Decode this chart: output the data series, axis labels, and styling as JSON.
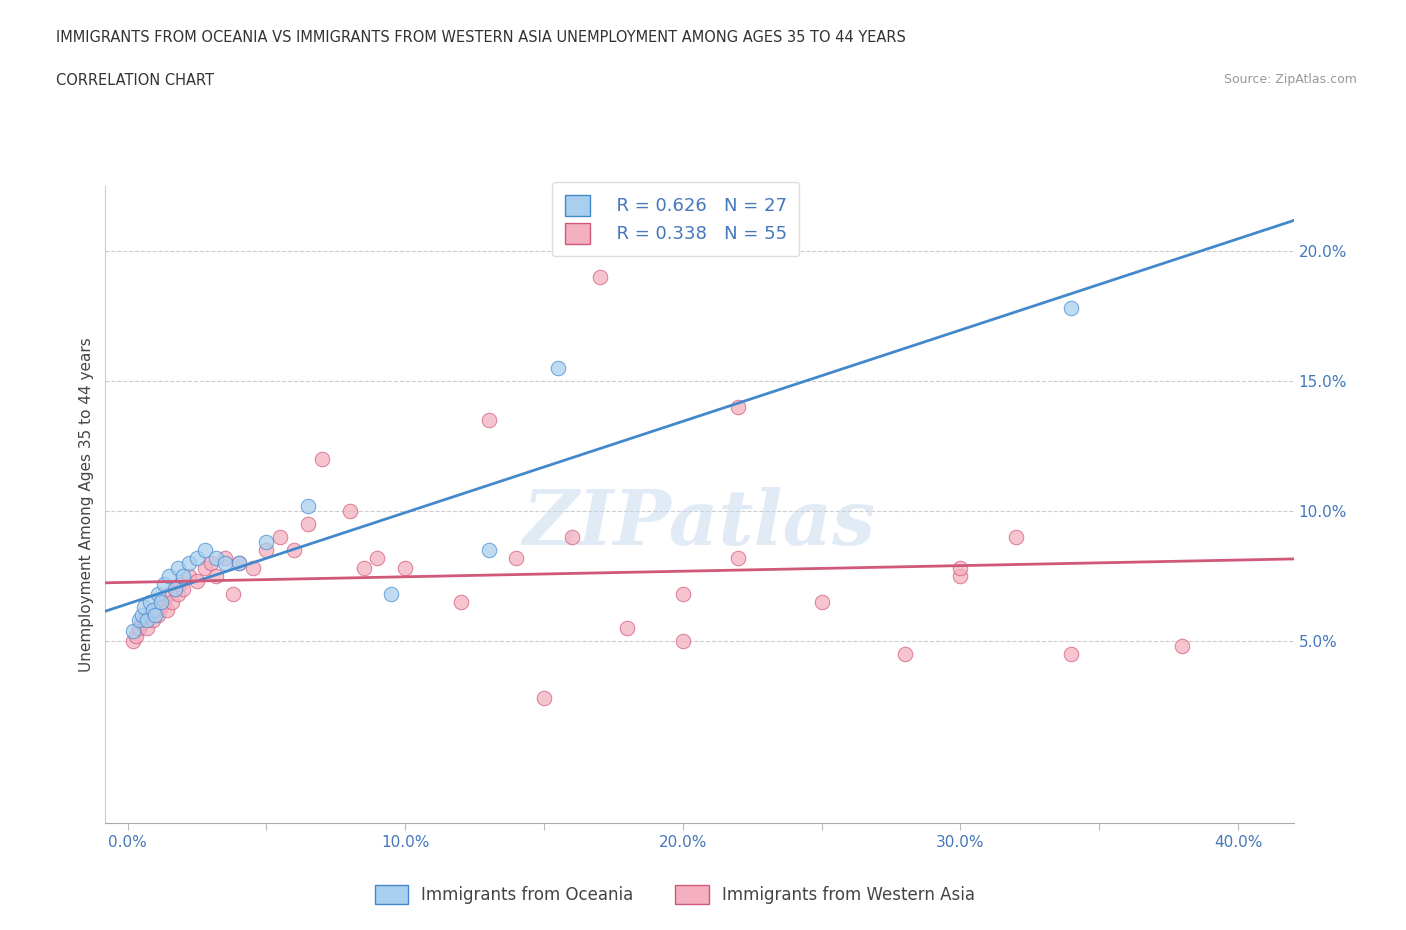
{
  "title_line1": "IMMIGRANTS FROM OCEANIA VS IMMIGRANTS FROM WESTERN ASIA UNEMPLOYMENT AMONG AGES 35 TO 44 YEARS",
  "title_line2": "CORRELATION CHART",
  "source_text": "Source: ZipAtlas.com",
  "ylabel": "Unemployment Among Ages 35 to 44 years",
  "color_oceania": "#A8CFEE",
  "color_western": "#F4B0C0",
  "line_color_oceania": "#4488CC",
  "line_color_western": "#D05878",
  "legend_r_oceania": "R = 0.626",
  "legend_n_oceania": "N = 27",
  "legend_r_western": "R = 0.338",
  "legend_n_western": "N = 55",
  "legend_label_oceania": "Immigrants from Oceania",
  "legend_label_western": "Immigrants from Western Asia",
  "watermark": "ZIPatlas",
  "tick_label_color": "#4477BB",
  "xlabel_ticks": [
    "0.0%",
    "",
    "10.0%",
    "",
    "20.0%",
    "",
    "30.0%",
    "",
    "40.0%"
  ],
  "ylabel_ticks": [
    "5.0%",
    "10.0%",
    "15.0%",
    "20.0%"
  ],
  "x_tick_vals": [
    0.0,
    0.05,
    0.1,
    0.15,
    0.2,
    0.25,
    0.3,
    0.35,
    0.4
  ],
  "y_tick_vals": [
    0.05,
    0.1,
    0.15,
    0.2
  ],
  "xlim": [
    -0.008,
    0.42
  ],
  "ylim": [
    -0.02,
    0.225
  ],
  "oceania_x": [
    0.002,
    0.004,
    0.005,
    0.006,
    0.007,
    0.008,
    0.009,
    0.01,
    0.011,
    0.012,
    0.013,
    0.015,
    0.017,
    0.018,
    0.02,
    0.022,
    0.025,
    0.028,
    0.032,
    0.035,
    0.04,
    0.05,
    0.065,
    0.155,
    0.095,
    0.13,
    0.34
  ],
  "oceania_y": [
    0.054,
    0.058,
    0.06,
    0.063,
    0.058,
    0.065,
    0.062,
    0.06,
    0.068,
    0.065,
    0.072,
    0.075,
    0.07,
    0.078,
    0.075,
    0.08,
    0.082,
    0.085,
    0.082,
    0.08,
    0.08,
    0.088,
    0.102,
    0.155,
    0.068,
    0.085,
    0.178
  ],
  "western_x": [
    0.002,
    0.003,
    0.004,
    0.005,
    0.006,
    0.007,
    0.008,
    0.009,
    0.01,
    0.011,
    0.012,
    0.013,
    0.014,
    0.015,
    0.016,
    0.017,
    0.018,
    0.019,
    0.02,
    0.022,
    0.025,
    0.028,
    0.03,
    0.032,
    0.035,
    0.038,
    0.04,
    0.045,
    0.05,
    0.055,
    0.06,
    0.07,
    0.08,
    0.09,
    0.1,
    0.12,
    0.14,
    0.16,
    0.18,
    0.2,
    0.13,
    0.17,
    0.22,
    0.2,
    0.28,
    0.38,
    0.32,
    0.25,
    0.3,
    0.34,
    0.065,
    0.085,
    0.15,
    0.22,
    0.3
  ],
  "western_y": [
    0.05,
    0.052,
    0.055,
    0.057,
    0.058,
    0.055,
    0.06,
    0.058,
    0.062,
    0.06,
    0.063,
    0.065,
    0.062,
    0.068,
    0.065,
    0.07,
    0.068,
    0.072,
    0.07,
    0.075,
    0.073,
    0.078,
    0.08,
    0.075,
    0.082,
    0.068,
    0.08,
    0.078,
    0.085,
    0.09,
    0.085,
    0.12,
    0.1,
    0.082,
    0.078,
    0.065,
    0.082,
    0.09,
    0.055,
    0.068,
    0.135,
    0.19,
    0.082,
    0.05,
    0.045,
    0.048,
    0.09,
    0.065,
    0.075,
    0.045,
    0.095,
    0.078,
    0.028,
    0.14,
    0.078
  ]
}
